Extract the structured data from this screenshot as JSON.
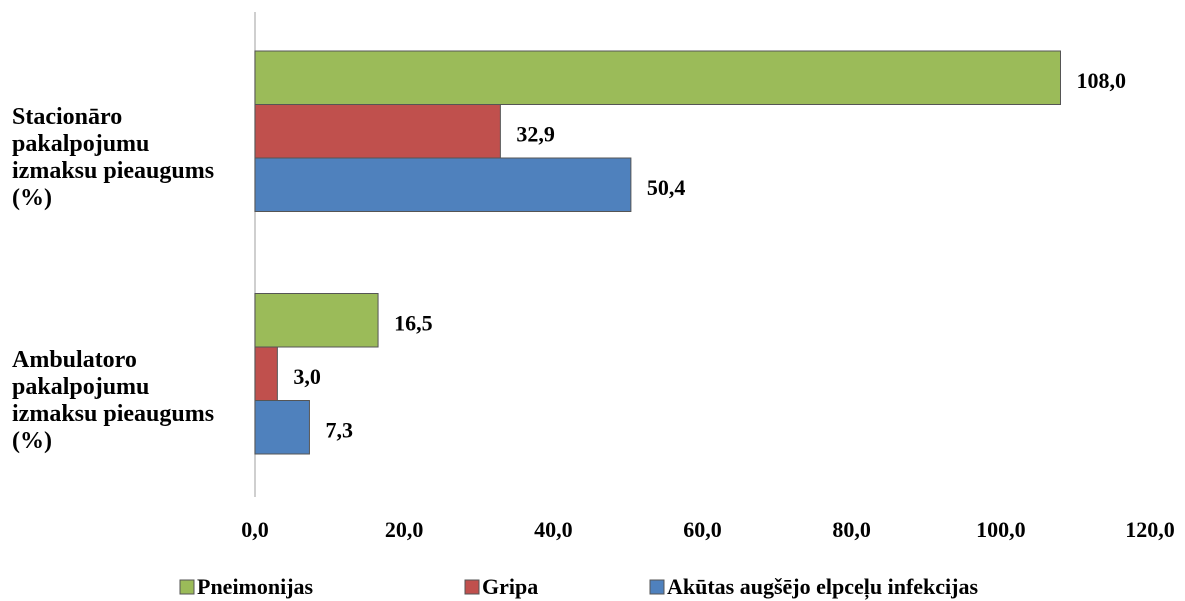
{
  "chart_data": {
    "type": "bar",
    "orientation": "horizontal",
    "categories": [
      "Stacionāro pakalpojumu izmaksu pieaugums (%)",
      "Ambulatoro pakalpojumu izmaksu pieaugums (%)"
    ],
    "series": [
      {
        "name": "Pneimonijas",
        "color": "#9bbb59",
        "values": [
          108.0,
          16.5
        ],
        "value_labels": [
          "108,0",
          "16,5"
        ]
      },
      {
        "name": "Gripa",
        "color": "#c0504d",
        "values": [
          32.9,
          3.0
        ],
        "value_labels": [
          "32,9",
          "3,0"
        ]
      },
      {
        "name": "Akūtas augšējo elpceļu infekcijas",
        "color": "#4f81bd",
        "values": [
          50.4,
          7.3
        ],
        "value_labels": [
          "50,4",
          "7,3"
        ]
      }
    ],
    "xlim": [
      0,
      120
    ],
    "xticks": [
      {
        "value": 0,
        "label": "0,0"
      },
      {
        "value": 20,
        "label": "20,0"
      },
      {
        "value": 40,
        "label": "40,0"
      },
      {
        "value": 60,
        "label": "60,0"
      },
      {
        "value": 80,
        "label": "80,0"
      },
      {
        "value": 100,
        "label": "100,0"
      },
      {
        "value": 120,
        "label": "120,0"
      }
    ],
    "grid": false,
    "legend": "bottom"
  }
}
